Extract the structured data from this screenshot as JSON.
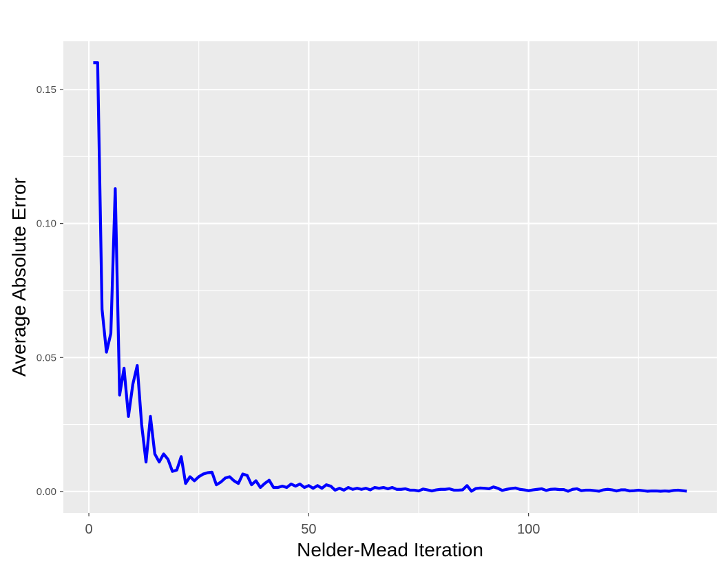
{
  "chart_data": {
    "type": "line",
    "title": "",
    "xlabel": "Nelder-Mead Iteration",
    "ylabel": "Average Absolute Error",
    "xlim": [
      -5.8,
      142.8
    ],
    "ylim": [
      -0.008,
      0.168
    ],
    "x_ticks": [
      0,
      50,
      100
    ],
    "x_tick_labels": [
      "0",
      "50",
      "100"
    ],
    "x_minor_ticks": [
      25,
      75,
      125
    ],
    "y_ticks": [
      0.0,
      0.05,
      0.1,
      0.15
    ],
    "y_tick_labels": [
      "0.00",
      "0.05",
      "0.10",
      "0.15"
    ],
    "y_minor_ticks": [
      0.025,
      0.075,
      0.125
    ],
    "grid": true,
    "legend": "none",
    "colors": {
      "panel": "#ebebeb",
      "grid": "#ffffff",
      "line": "#0000ff"
    },
    "series": [
      {
        "x": [
          1,
          2,
          3,
          4,
          5,
          6,
          7,
          8,
          9,
          10,
          11,
          12,
          13,
          14,
          15,
          16,
          17,
          18,
          19,
          20,
          21,
          22,
          23,
          24,
          25,
          26,
          27,
          28,
          29,
          30,
          31,
          32,
          33,
          34,
          35,
          36,
          37,
          38,
          39,
          40,
          41,
          42,
          43,
          44,
          45,
          46,
          47,
          48,
          49,
          50,
          51,
          52,
          53,
          54,
          55,
          56,
          57,
          58,
          59,
          60,
          61,
          62,
          63,
          64,
          65,
          66,
          67,
          68,
          69,
          70,
          71,
          72,
          73,
          74,
          75,
          76,
          77,
          78,
          79,
          80,
          81,
          82,
          83,
          84,
          85,
          86,
          87,
          88,
          89,
          90,
          91,
          92,
          93,
          94,
          95,
          96,
          97,
          98,
          99,
          100,
          101,
          102,
          103,
          104,
          105,
          106,
          107,
          108,
          109,
          110,
          111,
          112,
          113,
          114,
          115,
          116,
          117,
          118,
          119,
          120,
          121,
          122,
          123,
          124,
          125,
          126,
          127,
          128,
          129,
          130,
          131,
          132,
          133,
          134,
          135,
          136
        ],
        "values": [
          0.16,
          0.16,
          0.068,
          0.052,
          0.059,
          0.113,
          0.036,
          0.046,
          0.028,
          0.04,
          0.047,
          0.025,
          0.011,
          0.028,
          0.014,
          0.011,
          0.014,
          0.012,
          0.0075,
          0.008,
          0.013,
          0.003,
          0.0055,
          0.004,
          0.0055,
          0.0065,
          0.007,
          0.0072,
          0.0025,
          0.0035,
          0.005,
          0.0055,
          0.004,
          0.003,
          0.0065,
          0.006,
          0.0025,
          0.004,
          0.0015,
          0.003,
          0.0042,
          0.0015,
          0.0015,
          0.002,
          0.0015,
          0.0028,
          0.002,
          0.0028,
          0.0015,
          0.0022,
          0.0012,
          0.0022,
          0.0012,
          0.0025,
          0.002,
          0.0005,
          0.0012,
          0.0005,
          0.0015,
          0.0008,
          0.0012,
          0.0008,
          0.0012,
          0.0006,
          0.0015,
          0.0012,
          0.0015,
          0.001,
          0.0015,
          0.0008,
          0.0008,
          0.001,
          0.0005,
          0.0005,
          0.0002,
          0.0009,
          0.0006,
          0.0002,
          0.0006,
          0.0008,
          0.0008,
          0.001,
          0.0005,
          0.0005,
          0.0006,
          0.0022,
          0.0001,
          0.0011,
          0.0013,
          0.0012,
          0.001,
          0.0017,
          0.0012,
          0.0004,
          0.0008,
          0.0011,
          0.0013,
          0.0008,
          0.0006,
          0.0003,
          0.0006,
          0.0008,
          0.001,
          0.0004,
          0.0008,
          0.0009,
          0.0007,
          0.0007,
          0.0001,
          0.0008,
          0.001,
          0.0003,
          0.0005,
          0.0005,
          0.0003,
          0.0001,
          0.0006,
          0.0008,
          0.0006,
          0.0002,
          0.0006,
          0.0006,
          0.0002,
          0.0003,
          0.0005,
          0.0003,
          0.0001,
          0.0002,
          0.0002,
          0.0001,
          0.0002,
          0.0001,
          0.0004,
          0.0005,
          0.0003,
          0.0001
        ]
      }
    ]
  }
}
